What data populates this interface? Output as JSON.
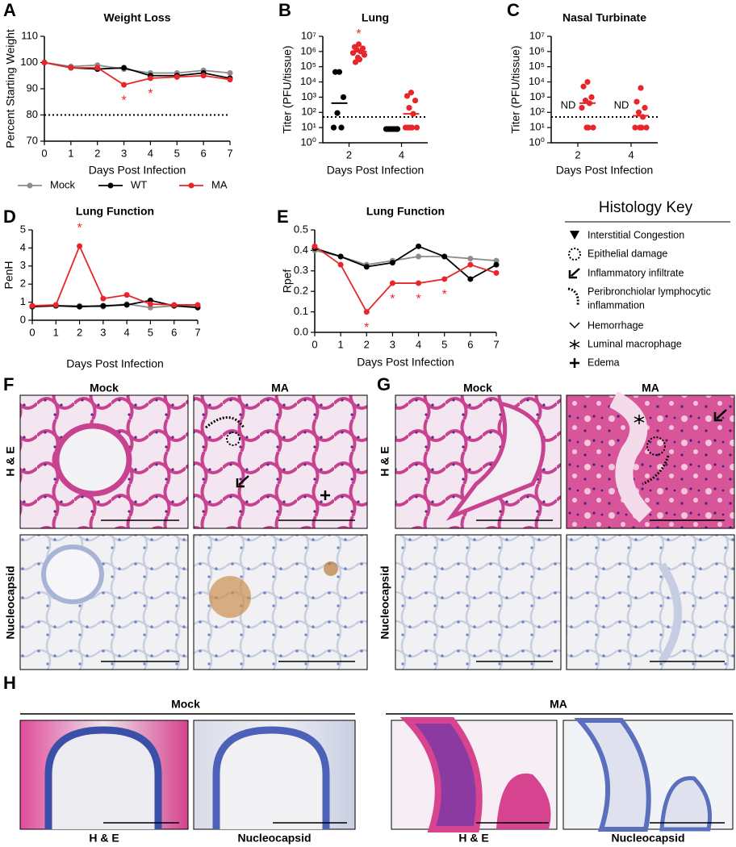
{
  "chart_data": [
    {
      "type": "line",
      "panel": "A",
      "title": "Weight Loss",
      "xlabel": "Days Post Infection",
      "ylabel": "Percent Starting Weight",
      "x": [
        0,
        1,
        2,
        3,
        4,
        5,
        6,
        7
      ],
      "xlim": [
        0,
        7
      ],
      "xticks": [
        0,
        1,
        2,
        3,
        4,
        5,
        6,
        7
      ],
      "ylim": [
        70,
        110
      ],
      "yticks": [
        70,
        80,
        90,
        100,
        110
      ],
      "reference_line": 80,
      "legend": "bottom",
      "series": [
        {
          "name": "Mock",
          "color": "#8c8c8c",
          "values": [
            100,
            98.5,
            99,
            97.5,
            96,
            96,
            97,
            96
          ]
        },
        {
          "name": "WT",
          "color": "#000000",
          "values": [
            100,
            98,
            97.5,
            98,
            95,
            95,
            96,
            94
          ]
        },
        {
          "name": "MA",
          "color": "#e8262a",
          "values": [
            100,
            98,
            98,
            91.5,
            94,
            94.5,
            95,
            93.5
          ]
        }
      ],
      "annotations": [
        {
          "x": 3,
          "text": "*"
        },
        {
          "x": 4,
          "text": "*"
        }
      ],
      "annotation_color": "#e8262a"
    },
    {
      "type": "scatter",
      "panel": "B",
      "title": "Lung",
      "xlabel": "Days Post Infection",
      "ylabel": "Titer (PFU/tissue)",
      "log_y": true,
      "xlim": [
        1,
        5
      ],
      "xticks": [
        2,
        4
      ],
      "ylim": [
        1,
        10000000
      ],
      "yticks": [
        {
          "value": 1,
          "label": "10⁰"
        },
        {
          "value": 10,
          "label": "10¹"
        },
        {
          "value": 100,
          "label": "10²"
        },
        {
          "value": 1000,
          "label": "10³"
        },
        {
          "value": 10000,
          "label": "10⁴"
        },
        {
          "value": 100000,
          "label": "10⁵"
        },
        {
          "value": 1000000,
          "label": "10⁶"
        },
        {
          "value": 10000000,
          "label": "10⁷"
        }
      ],
      "reference_line": 50,
      "groups": [
        {
          "x": 2,
          "color": "#000000",
          "values": [
            45000,
            45000,
            1000,
            90,
            10,
            10
          ],
          "mean": 400
        },
        {
          "x": 2,
          "color": "#e8262a",
          "values": [
            3000000,
            2000000,
            1600000,
            1300000,
            1000000,
            800000,
            600000,
            400000,
            300000,
            200000
          ],
          "mean": 1000000
        },
        {
          "x": 4,
          "color": "#000000",
          "values": [
            8,
            8,
            8,
            8,
            8,
            8,
            8
          ],
          "mean": 8
        },
        {
          "x": 4,
          "color": "#e8262a",
          "values": [
            2000,
            1200,
            600,
            200,
            80,
            10,
            10,
            10,
            10,
            10
          ],
          "mean": 80
        }
      ],
      "annotations": [
        {
          "x": 2,
          "text": "*"
        }
      ],
      "annotation_color": "#e8262a"
    },
    {
      "type": "scatter",
      "panel": "C",
      "title": "Nasal Turbinate",
      "xlabel": "Days Post Infection",
      "ylabel": "Titer (PFU/tissue)",
      "log_y": true,
      "xlim": [
        1,
        5
      ],
      "xticks": [
        2,
        4
      ],
      "ylim": [
        1,
        10000000
      ],
      "yticks": [
        {
          "value": 1,
          "label": "10⁰"
        },
        {
          "value": 10,
          "label": "10¹"
        },
        {
          "value": 100,
          "label": "10²"
        },
        {
          "value": 1000,
          "label": "10³"
        },
        {
          "value": 10000,
          "label": "10⁴"
        },
        {
          "value": 100000,
          "label": "10⁵"
        },
        {
          "value": 1000000,
          "label": "10⁶"
        },
        {
          "value": 10000000,
          "label": "10⁷"
        }
      ],
      "reference_line": 50,
      "groups": [
        {
          "x": 2,
          "color": "#e8262a",
          "values": [
            10000,
            5000,
            1000,
            600,
            400,
            200,
            10,
            10,
            10
          ],
          "mean": 400
        },
        {
          "x": 4,
          "color": "#e8262a",
          "values": [
            4000,
            500,
            200,
            100,
            50,
            10,
            10,
            10,
            10
          ],
          "mean": 60
        }
      ],
      "annotations": [
        {
          "x": 2,
          "text": "ND"
        },
        {
          "x": 4,
          "text": "ND"
        }
      ],
      "annotation_color": "#000000"
    },
    {
      "type": "line",
      "panel": "D",
      "title": "Lung Function",
      "xlabel": "Days Post Infection",
      "ylabel": "PenH",
      "x": [
        0,
        1,
        2,
        3,
        4,
        5,
        6,
        7
      ],
      "xlim": [
        0,
        7
      ],
      "xticks": [
        0,
        1,
        2,
        3,
        4,
        5,
        6,
        7
      ],
      "ylim": [
        0,
        5
      ],
      "yticks": [
        0,
        1,
        2,
        3,
        4,
        5
      ],
      "series": [
        {
          "name": "Mock",
          "color": "#8c8c8c",
          "values": [
            0.8,
            0.8,
            0.8,
            0.75,
            0.9,
            0.7,
            0.8,
            0.75
          ]
        },
        {
          "name": "WT",
          "color": "#000000",
          "values": [
            0.75,
            0.8,
            0.75,
            0.8,
            0.85,
            1.1,
            0.8,
            0.7
          ]
        },
        {
          "name": "MA",
          "color": "#e8262a",
          "values": [
            0.8,
            0.85,
            4.1,
            1.2,
            1.4,
            0.9,
            0.85,
            0.85
          ]
        }
      ],
      "annotations": [
        {
          "x": 2,
          "text": "*"
        }
      ],
      "annotation_color": "#e8262a"
    },
    {
      "type": "line",
      "panel": "E",
      "title": "Lung Function",
      "xlabel": "Days Post Infection",
      "ylabel": "Rpef",
      "x": [
        0,
        1,
        2,
        3,
        4,
        5,
        6,
        7
      ],
      "xlim": [
        0,
        7
      ],
      "xticks": [
        0,
        1,
        2,
        3,
        4,
        5,
        6,
        7
      ],
      "ylim": [
        0,
        0.5
      ],
      "yticks": [
        {
          "value": 0,
          "label": "0.0"
        },
        0.1,
        0.2,
        0.3,
        0.4,
        0.5
      ],
      "series": [
        {
          "name": "Mock",
          "color": "#8c8c8c",
          "values": [
            0.4,
            0.37,
            0.33,
            0.35,
            0.37,
            0.37,
            0.36,
            0.35
          ]
        },
        {
          "name": "WT",
          "color": "#000000",
          "values": [
            0.41,
            0.37,
            0.32,
            0.34,
            0.42,
            0.37,
            0.26,
            0.33
          ]
        },
        {
          "name": "MA",
          "color": "#e8262a",
          "values": [
            0.42,
            0.33,
            0.1,
            0.24,
            0.24,
            0.26,
            0.33,
            0.29
          ]
        }
      ],
      "annotations": [
        {
          "x": 2,
          "text": "*"
        },
        {
          "x": 3,
          "text": "*"
        },
        {
          "x": 4,
          "text": "*"
        },
        {
          "x": 5,
          "text": "*"
        }
      ],
      "annotation_color": "#e8262a"
    }
  ],
  "histology_key": {
    "title": "Histology Key",
    "items": [
      "Interstitial Congestion",
      "Epithelial damage",
      "Inflammatory infiltrate",
      "Peribronchiolar lymphocytic",
      "inflammation",
      "Hemorrhage",
      "Luminal macrophage",
      "Edema"
    ]
  },
  "histology": {
    "F": {
      "letter": "F",
      "columns": [
        "Mock",
        "MA"
      ],
      "rows": [
        "H & E",
        "Nucleocapsid"
      ]
    },
    "G": {
      "letter": "G",
      "columns": [
        "Mock",
        "MA"
      ],
      "rows": [
        "H & E",
        "Nucleocapsid"
      ]
    },
    "H": {
      "letter": "H",
      "groups": [
        "Mock",
        "MA"
      ],
      "labels": [
        "H & E",
        "Nucleocapsid",
        "H & E",
        "Nucleocapsid"
      ]
    }
  }
}
